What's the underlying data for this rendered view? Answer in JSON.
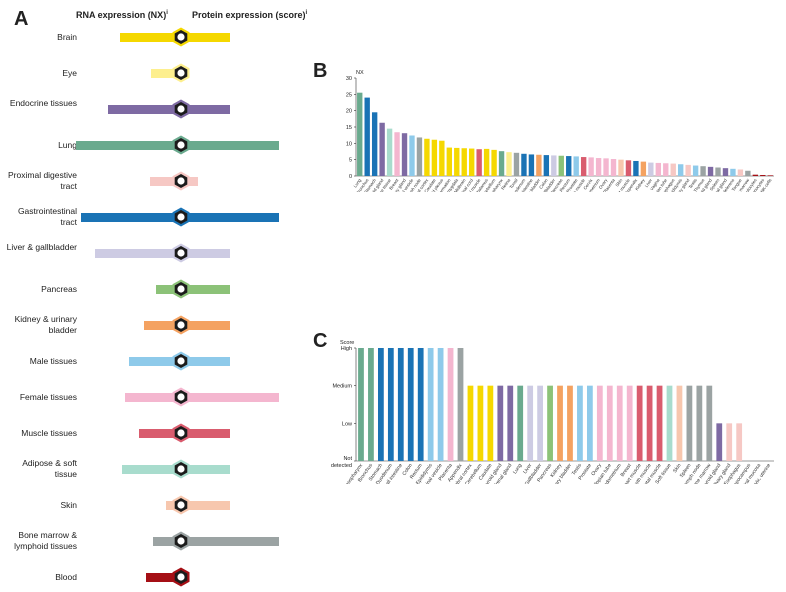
{
  "panel_letters": {
    "a": "A",
    "b": "B",
    "c": "C"
  },
  "panel_a": {
    "rna_header": "RNA expression (NX)",
    "protein_header": "Protein expression (score)",
    "info_mark": "i",
    "tissues": [
      {
        "label": "Brain",
        "color": "#f5d800",
        "rna": 58,
        "protein": 47,
        "icon": "brain-icon"
      },
      {
        "label": "Eye",
        "color": "#fdef8e",
        "rna": 29,
        "protein": 0,
        "icon": "eye-icon"
      },
      {
        "label": "Endocrine tissues",
        "color": "#7e6aa3",
        "rna": 70,
        "protein": 47,
        "icon": "thyroid-icon"
      },
      {
        "label": "Lung",
        "color": "#6aaa8e",
        "rna": 100,
        "protein": 94,
        "icon": "lung-icon"
      },
      {
        "label": "Proximal digestive tract",
        "color": "#f6c8c4",
        "rna": 30,
        "protein": 16,
        "icon": "mouth-icon"
      },
      {
        "label": "Gastrointestinal tract",
        "color": "#1a73b5",
        "rna": 95,
        "protein": 94,
        "icon": "stomach-icon"
      },
      {
        "label": "Liver & gallbladder",
        "color": "#cdcbe3",
        "rna": 82,
        "protein": 47,
        "icon": "liver-icon"
      },
      {
        "label": "Pancreas",
        "color": "#8cc278",
        "rna": 24,
        "protein": 47,
        "icon": "pancreas-icon"
      },
      {
        "label": "Kidney & urinary bladder",
        "color": "#f4a261",
        "rna": 35,
        "protein": 47,
        "icon": "kidney-icon"
      },
      {
        "label": "Male tissues",
        "color": "#8ecaea",
        "rna": 50,
        "protein": 47,
        "icon": "male-icon"
      },
      {
        "label": "Female tissues",
        "color": "#f4b6cf",
        "rna": 53,
        "protein": 94,
        "icon": "female-icon"
      },
      {
        "label": "Muscle tissues",
        "color": "#d95c6e",
        "rna": 40,
        "protein": 47,
        "icon": "muscle-icon"
      },
      {
        "label": "Adipose & soft tissue",
        "color": "#a8dccd",
        "rna": 56,
        "protein": 47,
        "icon": "adipose-icon"
      },
      {
        "label": "Skin",
        "color": "#f7c7ae",
        "rna": 14,
        "protein": 47,
        "icon": "skin-icon"
      },
      {
        "label": "Bone marrow & lymphoid tissues",
        "color": "#9ba3a3",
        "rna": 27,
        "protein": 94,
        "icon": "bone-marrow-icon"
      },
      {
        "label": "Blood",
        "color": "#a50f15",
        "rna": 33,
        "protein": 0,
        "icon": "blood-icon"
      }
    ]
  },
  "chart_data": [
    {
      "type": "bar",
      "ylabel": "NX",
      "ylim": [
        0,
        30
      ],
      "yticks": [
        0,
        5,
        10,
        15,
        20,
        25,
        30
      ],
      "grid": false,
      "categories": [
        "Lung",
        "Bronchus",
        "Stomach",
        "Thyroid gland",
        "Adipose tissue",
        "Breast",
        "Pituitary gland",
        "Seminal vesicle",
        "Lymph node",
        "Cerebral cortex",
        "Caudate",
        "Choroid plexus",
        "Hippocampal formation",
        "Amygdala",
        "Midbrain",
        "Spinal cord",
        "Skeletal muscle",
        "Hypothalamus",
        "Cerebellum",
        "Nasopharynx",
        "Retina",
        "Tonsil",
        "Duodenum",
        "Small intestine",
        "Urinary bladder",
        "Colon",
        "Gallbladder",
        "Pancreas",
        "Rectum",
        "Prostate",
        "Smooth muscle",
        "Cervix",
        "Endometrium",
        "Ovary",
        "Placenta",
        "Skin",
        "Heart muscle",
        "Appendix",
        "Kidney",
        "Liver",
        "Vagina",
        "Fallopian tube",
        "Esophagus",
        "Epididymis",
        "Salivary gland",
        "Testis",
        "Thymus",
        "Parathyroid gland",
        "Spleen",
        "Adrenal gland",
        "Ductus deferens",
        "Tongue",
        "Bone marrow",
        "Granulocytes",
        "Monocytes",
        "NK-cells"
      ],
      "values": [
        25.5,
        24,
        19.5,
        16.3,
        14.5,
        13.4,
        13.1,
        12.4,
        11.8,
        11.4,
        11.1,
        10.8,
        8.7,
        8.6,
        8.5,
        8.4,
        8.2,
        8.3,
        8,
        7.6,
        7.3,
        7.1,
        6.8,
        6.6,
        6.5,
        6.4,
        6.3,
        6.2,
        6.1,
        6,
        5.8,
        5.7,
        5.5,
        5.4,
        5.2,
        5,
        4.8,
        4.6,
        4.4,
        4.1,
        4,
        3.9,
        3.8,
        3.6,
        3.4,
        3.2,
        3,
        2.8,
        2.6,
        2.4,
        2.2,
        2,
        1.6,
        0.4,
        0.3,
        0.2
      ],
      "colors": [
        "#6aaa8e",
        "#1a73b5",
        "#1a73b5",
        "#7e6aa3",
        "#a8dccd",
        "#f4b6cf",
        "#7e6aa3",
        "#8ecaea",
        "#9ba3a3",
        "#f5d800",
        "#f5d800",
        "#f5d800",
        "#f5d800",
        "#f5d800",
        "#f5d800",
        "#f5d800",
        "#d95c6e",
        "#f5d800",
        "#f5d800",
        "#6aaa8e",
        "#fdef8e",
        "#9ba3a3",
        "#1a73b5",
        "#1a73b5",
        "#f4a261",
        "#1a73b5",
        "#cdcbe3",
        "#8cc278",
        "#1a73b5",
        "#8ecaea",
        "#d95c6e",
        "#f4b6cf",
        "#f4b6cf",
        "#f4b6cf",
        "#f4b6cf",
        "#f7c7ae",
        "#d95c6e",
        "#1a73b5",
        "#f4a261",
        "#cdcbe3",
        "#f4b6cf",
        "#f4b6cf",
        "#f6c8c4",
        "#8ecaea",
        "#f6c8c4",
        "#8ecaea",
        "#9ba3a3",
        "#7e6aa3",
        "#9ba3a3",
        "#7e6aa3",
        "#8ecaea",
        "#f6c8c4",
        "#9ba3a3",
        "#a50f15",
        "#a50f15",
        "#a50f15"
      ]
    },
    {
      "type": "bar",
      "ylabel": "Score",
      "ylevels": [
        "Not detected",
        "Low",
        "Medium",
        "High"
      ],
      "ylim": [
        0,
        3
      ],
      "categories": [
        "Nasopharynx",
        "Bronchus",
        "Stomach",
        "Duodenum",
        "Small intestine",
        "Colon",
        "Rectum",
        "Epididymis",
        "Seminal vesicle",
        "Placenta",
        "Appendix",
        "Cerebral cortex",
        "Cerebellum",
        "Caudate",
        "Parathyroid gland",
        "Adrenal gland",
        "Lung",
        "Liver",
        "Gallbladder",
        "Pancreas",
        "Kidney",
        "Urinary bladder",
        "Testis",
        "Prostate",
        "Ovary",
        "Fallopian tube",
        "Endometrium",
        "Breast",
        "Heart muscle",
        "Smooth muscle",
        "Skeletal muscle",
        "Soft tissue",
        "Skin",
        "Spleen",
        "Lymph node",
        "Bone marrow",
        "Thyroid gland",
        "Salivary gland",
        "Esophagus",
        "Hippocampus",
        "Oral mucosa",
        "Cervix, uterine"
      ],
      "values": [
        3,
        3,
        3,
        3,
        3,
        3,
        3,
        3,
        3,
        3,
        3,
        2,
        2,
        2,
        2,
        2,
        2,
        2,
        2,
        2,
        2,
        2,
        2,
        2,
        2,
        2,
        2,
        2,
        2,
        2,
        2,
        2,
        2,
        2,
        2,
        2,
        1,
        1,
        1,
        0,
        0,
        0
      ],
      "colors": [
        "#6aaa8e",
        "#6aaa8e",
        "#1a73b5",
        "#1a73b5",
        "#1a73b5",
        "#1a73b5",
        "#1a73b5",
        "#8ecaea",
        "#8ecaea",
        "#f4b6cf",
        "#9ba3a3",
        "#f5d800",
        "#f5d800",
        "#f5d800",
        "#7e6aa3",
        "#7e6aa3",
        "#6aaa8e",
        "#cdcbe3",
        "#cdcbe3",
        "#8cc278",
        "#f4a261",
        "#f4a261",
        "#8ecaea",
        "#8ecaea",
        "#f4b6cf",
        "#f4b6cf",
        "#f4b6cf",
        "#f4b6cf",
        "#d95c6e",
        "#d95c6e",
        "#d95c6e",
        "#a8dccd",
        "#f7c7ae",
        "#9ba3a3",
        "#9ba3a3",
        "#9ba3a3",
        "#7e6aa3",
        "#f6c8c4",
        "#f6c8c4",
        "#f5d800",
        "#f6c8c4",
        "#f4b6cf"
      ]
    }
  ]
}
